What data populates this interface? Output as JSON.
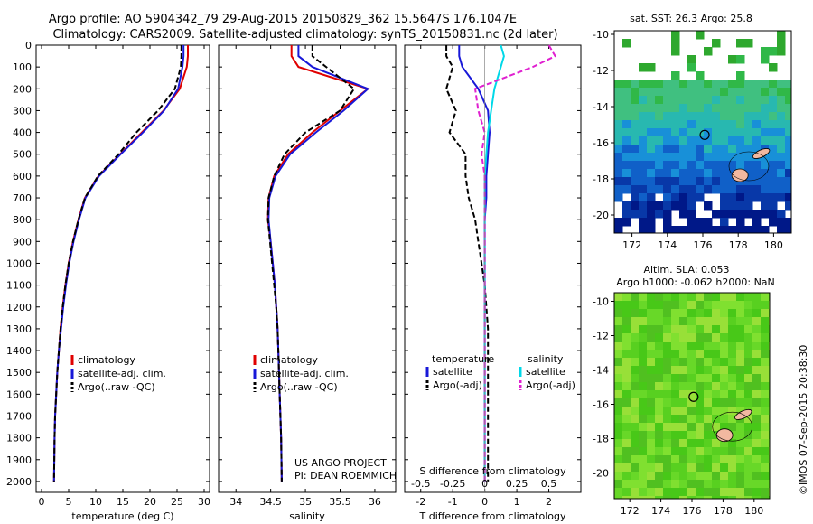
{
  "title_line1": "Argo profile: AO 5904342_79 29-Aug-2015 20150829_362 15.5647S 176.1047E",
  "title_line2": "Climatology: CARS2009. Satellite-adjusted climatology: synTS_20150831.nc (2d later)",
  "credit": "US ARGO PROJECT",
  "pi": "PI: DEAN ROEMMICH",
  "stamp": "©IMOS 07-Sep-2015 20:38:30",
  "colors": {
    "red": "#e00000",
    "blue": "#1818d8",
    "black": "#000000",
    "cyan": "#00d8e8",
    "magenta": "#e020d0"
  },
  "chart_data": [
    {
      "id": "temp",
      "type": "line",
      "xlabel": "temperature (deg C)",
      "xlim": [
        -1,
        31
      ],
      "ylim": [
        2050,
        0
      ],
      "xticks": [
        0,
        5,
        10,
        15,
        20,
        25,
        30
      ],
      "yticks": [
        0,
        100,
        200,
        300,
        400,
        500,
        600,
        700,
        800,
        900,
        1000,
        1100,
        1200,
        1300,
        1400,
        1500,
        1600,
        1700,
        1800,
        1900,
        2000
      ],
      "legend": [
        "climatology",
        "satellite-adj. clim.",
        "Argo(..raw -QC)"
      ],
      "series": [
        {
          "name": "climatology",
          "color": "red",
          "style": "solid",
          "x": [
            27.0,
            27.0,
            26.8,
            25.5,
            22.5,
            18.5,
            14.5,
            10.5,
            8.0,
            6.8,
            5.8,
            5.0,
            4.4,
            3.9,
            3.5,
            3.2,
            2.9,
            2.7,
            2.5,
            2.4,
            2.3
          ],
          "y": [
            0,
            50,
            100,
            200,
            300,
            400,
            500,
            600,
            700,
            800,
            900,
            1000,
            1100,
            1200,
            1300,
            1400,
            1500,
            1600,
            1700,
            1800,
            2000
          ]
        },
        {
          "name": "satellite-adj. clim.",
          "color": "blue",
          "style": "solid",
          "x": [
            26.2,
            26.2,
            26.0,
            25.2,
            22.6,
            18.7,
            14.6,
            10.6,
            8.1,
            6.9,
            5.9,
            5.1,
            4.5,
            4.0,
            3.6,
            3.2,
            2.9,
            2.7,
            2.5,
            2.4,
            2.3
          ],
          "y": [
            0,
            50,
            100,
            200,
            300,
            400,
            500,
            600,
            700,
            800,
            900,
            1000,
            1100,
            1200,
            1300,
            1400,
            1500,
            1600,
            1700,
            1800,
            2000
          ]
        },
        {
          "name": "Argo(..raw -QC)",
          "color": "black",
          "style": "dashed",
          "x": [
            25.8,
            25.8,
            25.7,
            24.6,
            21.5,
            17.5,
            14.2,
            10.4,
            8.0,
            6.8,
            5.8,
            5.0,
            4.4,
            3.9,
            3.5,
            3.2,
            2.9,
            2.7,
            2.5,
            2.4,
            2.3
          ],
          "y": [
            0,
            50,
            100,
            200,
            300,
            400,
            500,
            600,
            700,
            800,
            900,
            1000,
            1100,
            1200,
            1300,
            1400,
            1500,
            1600,
            1700,
            1800,
            2000
          ]
        }
      ]
    },
    {
      "id": "sal",
      "type": "line",
      "xlabel": "salinity",
      "xlim": [
        33.75,
        36.3
      ],
      "ylim": [
        2050,
        0
      ],
      "xticks": [
        34,
        34.5,
        35,
        35.5,
        36
      ],
      "legend": [
        "climatology",
        "satellite-adj. clim.",
        "Argo(..raw -QC)"
      ],
      "series": [
        {
          "name": "climatology",
          "color": "red",
          "style": "solid",
          "x": [
            34.8,
            34.8,
            34.9,
            35.9,
            35.5,
            35.1,
            34.75,
            34.55,
            34.47,
            34.46,
            34.5,
            34.53,
            34.56,
            34.58,
            34.6,
            34.61,
            34.62,
            34.63,
            34.64,
            34.65,
            34.66
          ],
          "y": [
            0,
            50,
            100,
            200,
            300,
            400,
            500,
            600,
            700,
            800,
            900,
            1000,
            1100,
            1200,
            1300,
            1400,
            1500,
            1600,
            1700,
            1800,
            2000
          ]
        },
        {
          "name": "satellite-adj. clim.",
          "color": "blue",
          "style": "solid",
          "x": [
            34.9,
            34.9,
            35.1,
            35.9,
            35.55,
            35.15,
            34.78,
            34.57,
            34.48,
            34.47,
            34.5,
            34.53,
            34.56,
            34.58,
            34.6,
            34.61,
            34.62,
            34.63,
            34.64,
            34.65,
            34.66
          ],
          "y": [
            0,
            50,
            100,
            200,
            300,
            400,
            500,
            600,
            700,
            800,
            900,
            1000,
            1100,
            1200,
            1300,
            1400,
            1500,
            1600,
            1700,
            1800,
            2000
          ]
        },
        {
          "name": "Argo(..raw -QC)",
          "color": "black",
          "style": "dashed",
          "x": [
            35.1,
            35.1,
            35.3,
            35.7,
            35.5,
            35.0,
            34.7,
            34.55,
            34.47,
            34.46,
            34.49,
            34.52,
            34.55,
            34.58,
            34.6,
            34.61,
            34.62,
            34.63,
            34.64,
            34.65,
            34.66
          ],
          "y": [
            0,
            50,
            100,
            200,
            300,
            400,
            500,
            600,
            700,
            800,
            900,
            1000,
            1100,
            1200,
            1300,
            1400,
            1500,
            1600,
            1700,
            1800,
            2000
          ]
        }
      ]
    },
    {
      "id": "diff",
      "type": "line",
      "xlabel": "T difference from climatology",
      "xlabel_top": "S difference from climatology",
      "xlim": [
        -2.5,
        3.0
      ],
      "ylim": [
        2050,
        0
      ],
      "xticks": [
        -2,
        -1,
        0,
        1,
        2
      ],
      "xticks_top_labels": [
        "-0.5",
        "-0.25",
        "0",
        "0.25",
        "0.5"
      ],
      "legend_left_title": "temperature",
      "legend_right_title": "salinity",
      "legend": [
        "satellite",
        "Argo(-adj)",
        "satellite",
        "Argo(-adj)"
      ],
      "series": [
        {
          "name": "temperature satellite",
          "color": "blue",
          "style": "solid",
          "x": [
            -0.8,
            -0.8,
            -0.7,
            -0.2,
            0.1,
            0.15,
            0.1,
            0.05,
            0.05,
            0.0,
            0.0,
            0.0,
            0.0,
            0.0,
            0.0,
            0.0,
            0.0,
            0.0,
            0.0,
            0.0,
            0.0
          ],
          "y": [
            0,
            50,
            100,
            200,
            300,
            400,
            500,
            600,
            700,
            800,
            900,
            1000,
            1100,
            1200,
            1300,
            1400,
            1500,
            1600,
            1700,
            1800,
            2000
          ]
        },
        {
          "name": "temperature Argo(-adj)",
          "color": "black",
          "style": "dashed",
          "x": [
            -1.2,
            -1.2,
            -1.0,
            -1.2,
            -0.9,
            -1.1,
            -0.6,
            -0.6,
            -0.5,
            -0.3,
            -0.2,
            -0.1,
            0.0,
            0.05,
            0.1,
            0.1,
            0.1,
            0.1,
            0.1,
            0.1,
            0.1
          ],
          "y": [
            0,
            50,
            100,
            200,
            300,
            400,
            500,
            600,
            700,
            800,
            900,
            1000,
            1100,
            1200,
            1300,
            1400,
            1500,
            1600,
            1700,
            1800,
            2000
          ]
        },
        {
          "name": "salinity satellite",
          "color": "cyan",
          "style": "solid",
          "x": [
            0.5,
            0.6,
            0.5,
            0.3,
            0.2,
            0.1,
            0.05,
            0.0,
            0.0,
            0.0,
            0.0,
            0.0,
            0.0,
            0.0,
            0.0,
            0.0,
            0.0,
            0.0,
            0.0,
            0.0,
            0.0
          ],
          "y": [
            0,
            50,
            100,
            200,
            300,
            400,
            500,
            600,
            700,
            800,
            900,
            1000,
            1100,
            1200,
            1300,
            1400,
            1500,
            1600,
            1700,
            1800,
            2000
          ]
        },
        {
          "name": "salinity Argo(-adj)",
          "color": "magenta",
          "style": "dashed",
          "x": [
            2.0,
            2.2,
            1.5,
            -0.3,
            -0.2,
            0.0,
            -0.1,
            0.0,
            0.0,
            0.0,
            0.0,
            0.0,
            0.0,
            0.0,
            0.0,
            0.0,
            0.0,
            0.0,
            0.0,
            0.0,
            0.0
          ],
          "y": [
            0,
            50,
            100,
            200,
            300,
            400,
            500,
            600,
            700,
            800,
            900,
            1000,
            1100,
            1200,
            1300,
            1400,
            1500,
            1600,
            1700,
            1800,
            2000
          ]
        }
      ]
    },
    {
      "id": "sst_map",
      "type": "heatmap",
      "title": "sat. SST: 26.3  Argo: 25.8",
      "xlim": [
        171,
        181
      ],
      "ylim": [
        -21,
        -9.8
      ],
      "xticks": [
        172,
        174,
        176,
        178,
        180
      ],
      "yticks": [
        -10,
        -12,
        -14,
        -16,
        -18,
        -20
      ],
      "marker": {
        "lon": 176.1047,
        "lat": -15.5647
      }
    },
    {
      "id": "sla_map",
      "type": "heatmap",
      "title_line1": "Altim. SLA: 0.053",
      "title_line2": "Argo h1000: -0.062  h2000: NaN",
      "xlim": [
        171,
        181
      ],
      "ylim": [
        -21.5,
        -9.5
      ],
      "xticks": [
        172,
        174,
        176,
        178,
        180
      ],
      "yticks": [
        -10,
        -12,
        -14,
        -16,
        -18,
        -20
      ],
      "marker": {
        "lon": 176.1047,
        "lat": -15.5647
      }
    }
  ]
}
